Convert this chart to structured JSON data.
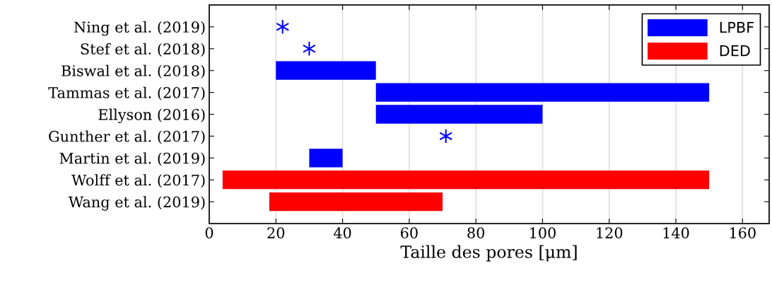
{
  "chart_data": {
    "type": "bar",
    "orientation": "horizontal",
    "xlabel": "Taille des pores [μm]",
    "categories": [
      "Ning et al. (2019)",
      "Stef et al. (2018)",
      "Biswal et al. (2018)",
      "Tammas et al. (2017)",
      "Ellyson (2016)",
      "Gunther et al. (2017)",
      "Martin et al. (2019)",
      "Wolff et al. (2017)",
      "Wang et al. (2019)"
    ],
    "series": [
      {
        "name": "LPBF",
        "color": "#0000ff",
        "values": [
          null,
          null,
          30,
          100,
          50,
          null,
          10,
          null,
          null
        ],
        "base": [
          null,
          null,
          20,
          50,
          50,
          null,
          30,
          null,
          null
        ]
      },
      {
        "name": "DED",
        "color": "#ff0000",
        "values": [
          null,
          null,
          null,
          null,
          null,
          null,
          null,
          146,
          52
        ],
        "base": [
          null,
          null,
          null,
          null,
          null,
          null,
          null,
          4,
          18
        ]
      },
      {
        "type": "scatter",
        "color": "#0000ff",
        "marker": "cross",
        "values": [
          22,
          30,
          null,
          null,
          null,
          71,
          null,
          null,
          null
        ]
      }
    ],
    "xlim": [
      0,
      168
    ],
    "xticks": [
      0,
      20,
      40,
      60,
      80,
      100,
      120,
      140,
      160
    ],
    "grid": "x",
    "legend": "top right"
  }
}
